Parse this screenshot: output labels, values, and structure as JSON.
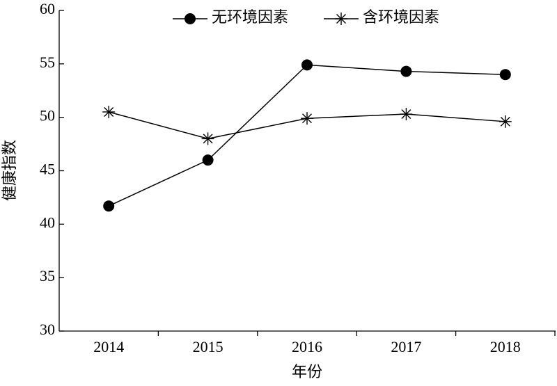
{
  "chart_data": {
    "type": "line",
    "x_label": "年份",
    "y_label": "健康指数",
    "categories": [
      "2014",
      "2015",
      "2016",
      "2017",
      "2018"
    ],
    "series": [
      {
        "name": "无环境因素",
        "color": "#000000",
        "marker": "circle",
        "values": [
          41.7,
          46.0,
          54.9,
          54.3,
          54.0
        ]
      },
      {
        "name": "含环境因素",
        "color": "#000000",
        "marker": "asterisk",
        "values": [
          50.5,
          48.0,
          49.9,
          50.3,
          49.6
        ]
      }
    ],
    "ylim": [
      30,
      60
    ],
    "yticks": [
      30,
      35,
      40,
      45,
      50,
      55,
      60
    ],
    "grid": false
  }
}
